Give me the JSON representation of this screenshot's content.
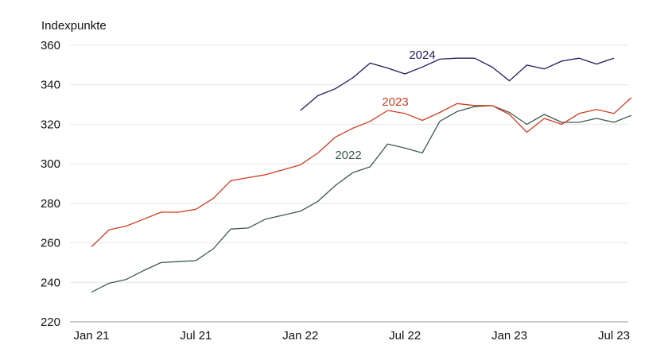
{
  "chart_data": {
    "type": "line",
    "unit_label": "Indexpunkte",
    "ylim": [
      220,
      360
    ],
    "y_ticks": [
      "220",
      "240",
      "260",
      "280",
      "300",
      "320",
      "340",
      "360"
    ],
    "x_ticks": [
      "Jan 21",
      "Jul 21",
      "Jan 22",
      "Jul 22",
      "Jan 23",
      "Jul 23"
    ],
    "grid": true,
    "legend": "inline labels",
    "series": [
      {
        "name": "2022",
        "color": "#3d5a50",
        "start": "Jan 21",
        "values": [
          235,
          239.5,
          241.5,
          246,
          250,
          250.5,
          251,
          257,
          267,
          267.5,
          272,
          274,
          276,
          281,
          289,
          295.5,
          298.5,
          310,
          308,
          305.5,
          321.5,
          326.5,
          329,
          329.5,
          326,
          320,
          325,
          321,
          321,
          323,
          321,
          324.5
        ]
      },
      {
        "name": "2023",
        "color": "#d23c1e",
        "start": "Jan 21",
        "values": [
          258,
          266.5,
          268.5,
          272,
          275.5,
          275.5,
          277,
          282.5,
          291.5,
          293,
          294.5,
          297,
          299.5,
          305.5,
          313.5,
          318,
          321.5,
          327,
          325.5,
          322,
          326,
          330.5,
          329.5,
          329.5,
          325,
          316,
          323,
          320,
          325.5,
          327.5,
          325.5,
          333.5
        ]
      },
      {
        "name": "2024",
        "color": "#1f1a5c",
        "start": "Jan 22",
        "values": [
          327,
          334.5,
          338,
          343.5,
          351,
          348.5,
          345.5,
          349,
          353,
          353.5,
          353.5,
          349,
          342,
          350,
          348,
          352,
          353.5,
          350.5,
          353.5
        ]
      }
    ]
  }
}
